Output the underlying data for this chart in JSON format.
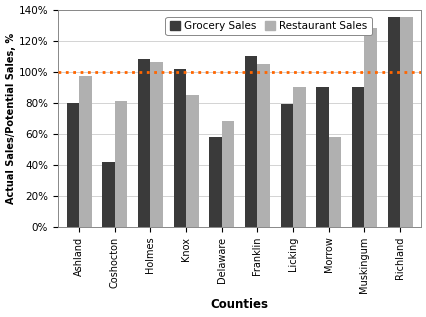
{
  "counties": [
    "Ashland",
    "Coshocton",
    "Holmes",
    "Knox",
    "Delaware",
    "Franklin",
    "Licking",
    "Morrow",
    "Muskingum",
    "Richland"
  ],
  "grocery_sales": [
    0.8,
    0.42,
    1.08,
    1.02,
    0.58,
    1.1,
    0.79,
    0.9,
    0.9,
    1.35
  ],
  "restaurant_sales": [
    0.97,
    0.81,
    1.06,
    0.85,
    0.68,
    1.05,
    0.9,
    0.58,
    1.28,
    1.35
  ],
  "grocery_color": "#3a3a3a",
  "restaurant_color": "#b0b0b0",
  "reference_line_y": 1.0,
  "reference_line_color": "#FF6600",
  "ylabel": "Actual Sales/Potential Sales, %",
  "xlabel": "Counties",
  "ylim": [
    0,
    1.4
  ],
  "yticks": [
    0.0,
    0.2,
    0.4,
    0.6,
    0.8,
    1.0,
    1.2,
    1.4
  ],
  "ytick_labels": [
    "0%",
    "20%",
    "40%",
    "60%",
    "80%",
    "100%",
    "120%",
    "140%"
  ],
  "legend_grocery": "Grocery Sales",
  "legend_restaurant": "Restaurant Sales",
  "bar_width": 0.35,
  "background_color": "#ffffff",
  "grid_color": "#cccccc",
  "figsize": [
    4.27,
    3.17
  ],
  "dpi": 100
}
